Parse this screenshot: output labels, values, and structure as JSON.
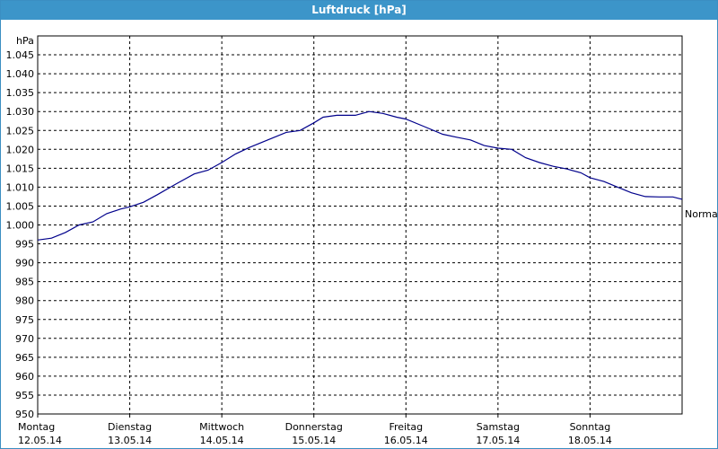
{
  "window": {
    "title": "Luftdruck [hPa]"
  },
  "chart_data": {
    "type": "line",
    "title": "Luftdruck [hPa]",
    "ylabel": "hPa",
    "ylim": [
      950,
      1050
    ],
    "xlim": [
      0,
      7
    ],
    "grid": true,
    "y_ticks": [
      "950",
      "955",
      "960",
      "965",
      "970",
      "975",
      "980",
      "985",
      "990",
      "995",
      "1.000",
      "1.005",
      "1.010",
      "1.015",
      "1.020",
      "1.025",
      "1.030",
      "1.035",
      "1.040",
      "1.045"
    ],
    "x_ticks": [
      {
        "day": "Montag",
        "date": "12.05.14"
      },
      {
        "day": "Dienstag",
        "date": "13.05.14"
      },
      {
        "day": "Mittwoch",
        "date": "14.05.14"
      },
      {
        "day": "Donnerstag",
        "date": "15.05.14"
      },
      {
        "day": "Freitag",
        "date": "16.05.14"
      },
      {
        "day": "Samstag",
        "date": "17.05.14"
      },
      {
        "day": "Sonntag",
        "date": "18.05.14"
      }
    ],
    "annotation": "Normal",
    "annotation_value": 1003,
    "line_color": "#00008b",
    "series": [
      {
        "x": [
          0,
          0.15,
          0.3,
          0.45,
          0.6,
          0.75,
          0.9,
          1.0,
          1.15,
          1.3,
          1.5,
          1.7,
          1.85,
          2.0,
          2.15,
          2.3,
          2.5,
          2.7,
          2.85,
          3.0,
          3.1,
          3.25,
          3.45,
          3.6,
          3.75,
          3.9,
          4.0,
          4.2,
          4.4,
          4.55,
          4.7,
          4.85,
          5.0,
          5.15,
          5.3,
          5.45,
          5.6,
          5.75,
          5.9,
          6.0,
          6.15,
          6.3,
          6.45,
          6.6,
          6.75,
          6.9,
          7.0
        ],
        "values": [
          996.0,
          996.5,
          998.0,
          1000.0,
          1000.8,
          1003.0,
          1004.2,
          1004.8,
          1006.0,
          1008.0,
          1010.8,
          1013.5,
          1014.5,
          1016.5,
          1018.8,
          1020.5,
          1022.5,
          1024.5,
          1025.0,
          1027.0,
          1028.5,
          1029.0,
          1029.0,
          1030.0,
          1029.5,
          1028.5,
          1028.0,
          1026.0,
          1024.0,
          1023.2,
          1022.5,
          1021.0,
          1020.3,
          1020.0,
          1017.8,
          1016.5,
          1015.5,
          1014.8,
          1013.8,
          1012.5,
          1011.5,
          1010.0,
          1008.5,
          1007.5,
          1007.4,
          1007.4,
          1006.8
        ]
      }
    ]
  }
}
